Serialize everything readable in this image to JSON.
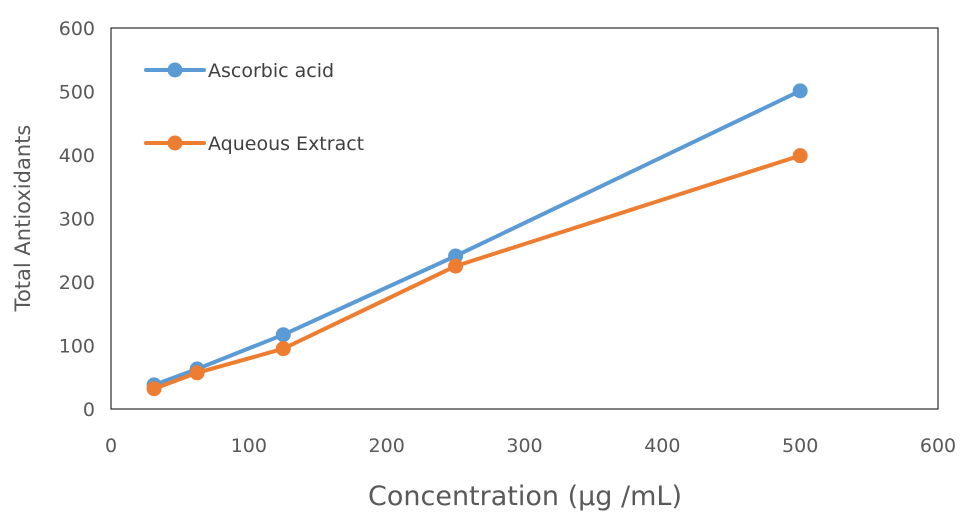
{
  "chart_data": {
    "type": "line",
    "title": "",
    "xlabel": "Concentration (μg /mL)",
    "ylabel": "Total Antioxidants",
    "xlim": [
      0,
      600
    ],
    "ylim": [
      0,
      600
    ],
    "xticks": [
      0,
      100,
      200,
      300,
      400,
      500,
      600
    ],
    "yticks": [
      0,
      100,
      200,
      300,
      400,
      500,
      600
    ],
    "grid": false,
    "legend_position": "top-left",
    "series": [
      {
        "name": "Ascorbic acid",
        "color": "#5B9BD5",
        "x": [
          31.25,
          62.5,
          125,
          250,
          500
        ],
        "y": [
          38,
          63,
          117,
          241,
          501
        ]
      },
      {
        "name": "Aqueous Extract",
        "color": "#ED7D31",
        "x": [
          31.25,
          62.5,
          125,
          250,
          500
        ],
        "y": [
          32,
          57,
          95,
          225,
          399
        ]
      }
    ]
  }
}
